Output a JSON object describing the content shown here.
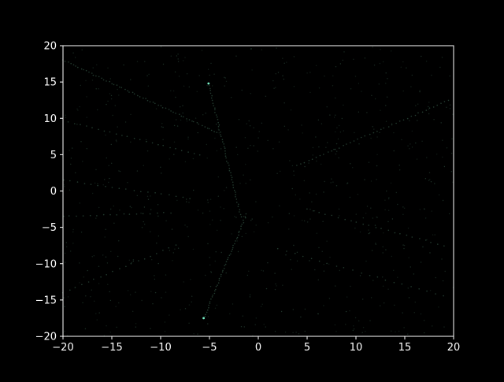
{
  "chart_data": {
    "type": "scatter",
    "title": "",
    "xlabel": "",
    "ylabel": "",
    "xlim": [
      -20,
      20
    ],
    "ylim": [
      -20,
      20
    ],
    "grid": false,
    "legend": "none",
    "xticks": [
      -20,
      -15,
      -10,
      -5,
      0,
      5,
      10,
      15,
      20
    ],
    "yticks": [
      -20,
      -15,
      -10,
      -5,
      0,
      5,
      10,
      15,
      20
    ],
    "xtick_labels": [
      "−20",
      "−15",
      "−10",
      "−5",
      "0",
      "5",
      "10",
      "15",
      "20"
    ],
    "ytick_labels": [
      "−20",
      "−15",
      "−10",
      "−5",
      "0",
      "5",
      "10",
      "15",
      "20"
    ],
    "colors": {
      "background": "#000000",
      "axes": "#ffffff",
      "points": "#2f4f3f",
      "highlight_points": "#7fffd4"
    },
    "highlight_points": [
      {
        "x": -5.1,
        "y": 14.8
      },
      {
        "x": -5.6,
        "y": -17.5
      }
    ],
    "point_segments": [
      {
        "x0": -20.0,
        "y0": 18.0,
        "x1": -4.2,
        "y1": 8.0,
        "n": 60
      },
      {
        "x0": -5.1,
        "y0": 14.8,
        "x1": -1.8,
        "y1": -3.5,
        "n": 55
      },
      {
        "x0": -1.2,
        "y0": -3.2,
        "x1": -5.6,
        "y1": -17.5,
        "n": 50
      },
      {
        "x0": -19.5,
        "y0": 9.5,
        "x1": -6.0,
        "y1": 5.0,
        "n": 22
      },
      {
        "x0": -20.0,
        "y0": 1.5,
        "x1": -7.0,
        "y1": -1.0,
        "n": 18
      },
      {
        "x0": -20.0,
        "y0": -3.5,
        "x1": -9.0,
        "y1": -3.0,
        "n": 16
      },
      {
        "x0": -20.0,
        "y0": -14.0,
        "x1": -8.5,
        "y1": -7.5,
        "n": 18
      },
      {
        "x0": 4.0,
        "y0": 3.5,
        "x1": 19.5,
        "y1": 12.5,
        "n": 40
      },
      {
        "x0": 5.0,
        "y0": -2.5,
        "x1": 19.0,
        "y1": -7.5,
        "n": 22
      },
      {
        "x0": 2.0,
        "y0": -8.0,
        "x1": 19.0,
        "y1": -14.5,
        "n": 20
      }
    ],
    "scatter_density": 700
  }
}
